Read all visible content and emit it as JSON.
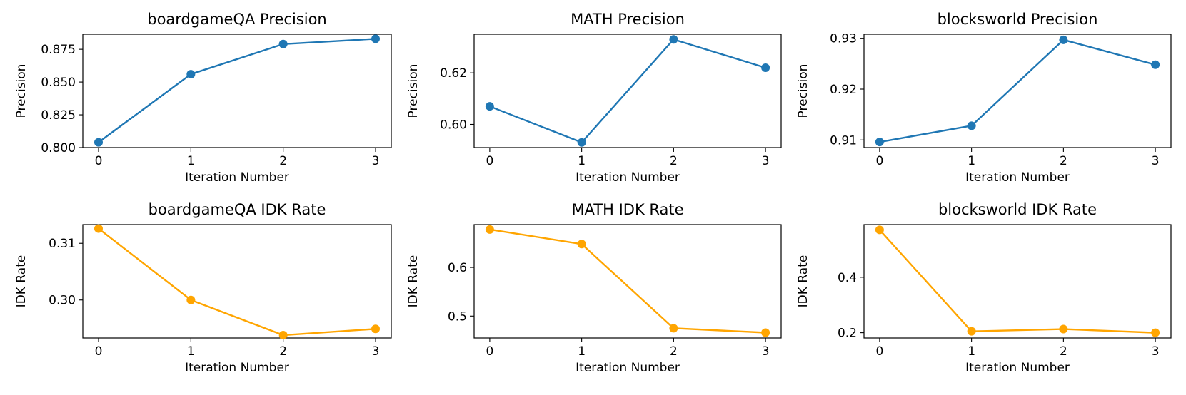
{
  "chart_data": [
    {
      "type": "line",
      "title": "boardgameQA Precision",
      "xlabel": "Iteration Number",
      "ylabel": "Precision",
      "x": [
        0,
        1,
        2,
        3
      ],
      "series": [
        {
          "name": "Precision",
          "color": "#1f77b4",
          "values": [
            0.804,
            0.856,
            0.879,
            0.883
          ]
        }
      ],
      "xticks": [
        "0",
        "1",
        "2",
        "3"
      ],
      "yticks": [
        0.8,
        0.825,
        0.85,
        0.875
      ],
      "ytick_labels": [
        "0.800",
        "0.825",
        "0.850",
        "0.875"
      ],
      "xlim": [
        -0.17,
        3.17
      ],
      "ylim": [
        0.8,
        0.8865
      ]
    },
    {
      "type": "line",
      "title": "MATH Precision",
      "xlabel": "Iteration Number",
      "ylabel": "Precision",
      "x": [
        0,
        1,
        2,
        3
      ],
      "series": [
        {
          "name": "Precision",
          "color": "#1f77b4",
          "values": [
            0.607,
            0.593,
            0.633,
            0.622
          ]
        }
      ],
      "xticks": [
        "0",
        "1",
        "2",
        "3"
      ],
      "yticks": [
        0.6,
        0.62
      ],
      "ytick_labels": [
        "0.60",
        "0.62"
      ],
      "xlim": [
        -0.17,
        3.17
      ],
      "ylim": [
        0.591,
        0.635
      ]
    },
    {
      "type": "line",
      "title": "blocksworld Precision",
      "xlabel": "Iteration Number",
      "ylabel": "Precision",
      "x": [
        0,
        1,
        2,
        3
      ],
      "series": [
        {
          "name": "Precision",
          "color": "#1f77b4",
          "values": [
            0.9096,
            0.9128,
            0.9297,
            0.9248
          ]
        }
      ],
      "xticks": [
        "0",
        "1",
        "2",
        "3"
      ],
      "yticks": [
        0.91,
        0.92,
        0.93
      ],
      "ytick_labels": [
        "0.91",
        "0.92",
        "0.93"
      ],
      "xlim": [
        -0.17,
        3.17
      ],
      "ylim": [
        0.9085,
        0.9308
      ]
    },
    {
      "type": "line",
      "title": "boardgameQA IDK Rate",
      "xlabel": "Iteration Number",
      "ylabel": "IDK Rate",
      "x": [
        0,
        1,
        2,
        3
      ],
      "series": [
        {
          "name": "IDK Rate",
          "color": "#ffa500",
          "values": [
            0.3126,
            0.3,
            0.2938,
            0.2949
          ]
        }
      ],
      "xticks": [
        "0",
        "1",
        "2",
        "3"
      ],
      "yticks": [
        0.3,
        0.31
      ],
      "ytick_labels": [
        "0.30",
        "0.31"
      ],
      "xlim": [
        -0.17,
        3.17
      ],
      "ylim": [
        0.2933,
        0.3133
      ]
    },
    {
      "type": "line",
      "title": "MATH IDK Rate",
      "xlabel": "Iteration Number",
      "ylabel": "IDK Rate",
      "x": [
        0,
        1,
        2,
        3
      ],
      "series": [
        {
          "name": "IDK Rate",
          "color": "#ffa500",
          "values": [
            0.678,
            0.648,
            0.475,
            0.466
          ]
        }
      ],
      "xticks": [
        "0",
        "1",
        "2",
        "3"
      ],
      "yticks": [
        0.5,
        0.6
      ],
      "ytick_labels": [
        "0.5",
        "0.6"
      ],
      "xlim": [
        -0.17,
        3.17
      ],
      "ylim": [
        0.455,
        0.688
      ]
    },
    {
      "type": "line",
      "title": "blocksworld IDK Rate",
      "xlabel": "Iteration Number",
      "ylabel": "IDK Rate",
      "x": [
        0,
        1,
        2,
        3
      ],
      "series": [
        {
          "name": "IDK Rate",
          "color": "#ffa500",
          "values": [
            0.571,
            0.205,
            0.213,
            0.2
          ]
        }
      ],
      "xticks": [
        "0",
        "1",
        "2",
        "3"
      ],
      "yticks": [
        0.2,
        0.4
      ],
      "ytick_labels": [
        "0.2",
        "0.4"
      ],
      "xlim": [
        -0.17,
        3.17
      ],
      "ylim": [
        0.181,
        0.59
      ]
    }
  ]
}
